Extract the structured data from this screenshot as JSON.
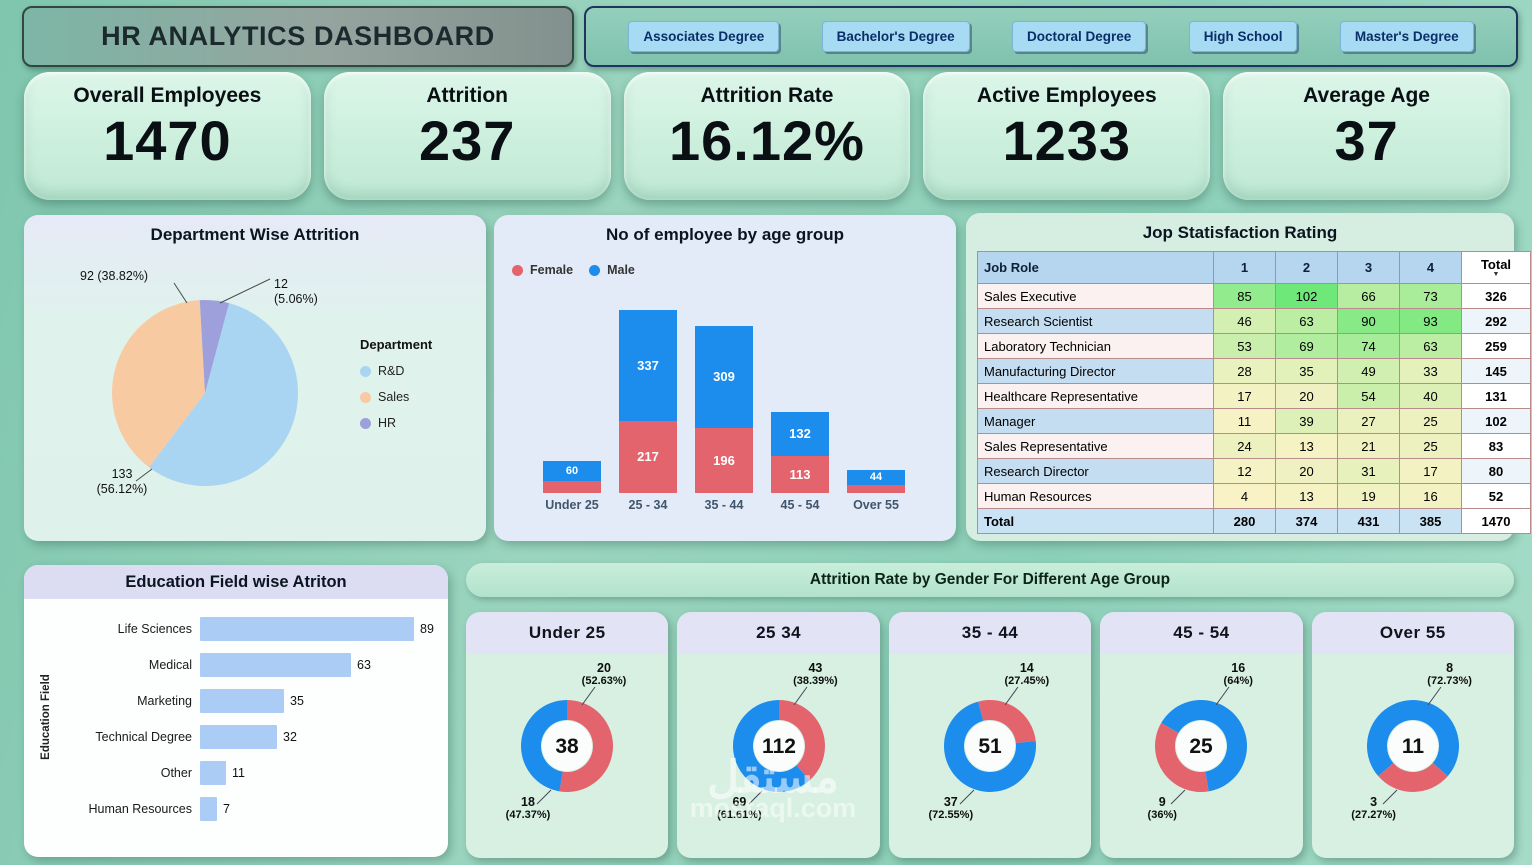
{
  "header": {
    "title": "HR ANALYTICS DASHBOARD"
  },
  "filters": {
    "buttons": [
      {
        "label": "Associates Degree"
      },
      {
        "label": "Bachelor's Degree"
      },
      {
        "label": "Doctoral Degree"
      },
      {
        "label": "High School"
      },
      {
        "label": "Master's Degree"
      }
    ]
  },
  "kpis": [
    {
      "label": "Overall Employees",
      "value": "1470"
    },
    {
      "label": "Attrition",
      "value": "237"
    },
    {
      "label": "Attrition Rate",
      "value": "16.12%"
    },
    {
      "label": "Active Employees",
      "value": "1233"
    },
    {
      "label": "Average Age",
      "value": "37"
    }
  ],
  "chart_data": [
    {
      "id": "department-wise-attrition",
      "type": "pie",
      "title": "Department Wise Attrition",
      "legend_title": "Department",
      "start_deg": 15,
      "slices": [
        {
          "label": "R&D",
          "value": 133,
          "pct": "56.12%",
          "color": "#a9d5f2"
        },
        {
          "label": "Sales",
          "value": 92,
          "pct": "38.82%",
          "color": "#f8caa2"
        },
        {
          "label": "HR",
          "value": 12,
          "pct": "5.06%",
          "color": "#9da0da"
        }
      ]
    },
    {
      "id": "employees-by-age-group",
      "type": "bar",
      "stacked": true,
      "title": "No of employee by age group",
      "categories": [
        "Under 25",
        "25 - 34",
        "35 - 44",
        "45 - 54",
        "Over 55"
      ],
      "series": [
        {
          "name": "Female",
          "color": "#e4646e",
          "values": [
            37,
            217,
            196,
            113,
            25
          ],
          "labels": [
            "",
            "217",
            "196",
            "113",
            ""
          ]
        },
        {
          "name": "Male",
          "color": "#1c8ced",
          "values": [
            60,
            337,
            309,
            132,
            44
          ],
          "labels": [
            "60",
            "337",
            "309",
            "132",
            "44"
          ]
        }
      ],
      "ylim": [
        0,
        600
      ],
      "legend_position": "top-left",
      "grid": false
    },
    {
      "id": "job-satisfaction-rating",
      "type": "table",
      "title": "Jop Statisfaction Rating",
      "columns": [
        "Job Role",
        "1",
        "2",
        "3",
        "4",
        "Total"
      ],
      "rows": [
        {
          "role": "Sales Executive",
          "values": [
            85,
            102,
            66,
            73
          ],
          "total": 326
        },
        {
          "role": "Research Scientist",
          "values": [
            46,
            63,
            90,
            93
          ],
          "total": 292
        },
        {
          "role": "Laboratory Technician",
          "values": [
            53,
            69,
            74,
            63
          ],
          "total": 259
        },
        {
          "role": "Manufacturing Director",
          "values": [
            28,
            35,
            49,
            33
          ],
          "total": 145
        },
        {
          "role": "Healthcare Representative",
          "values": [
            17,
            20,
            54,
            40
          ],
          "total": 131
        },
        {
          "role": "Manager",
          "values": [
            11,
            39,
            27,
            25
          ],
          "total": 102
        },
        {
          "role": "Sales Representative",
          "values": [
            24,
            13,
            21,
            25
          ],
          "total": 83
        },
        {
          "role": "Research Director",
          "values": [
            12,
            20,
            31,
            17
          ],
          "total": 80
        },
        {
          "role": "Human Resources",
          "values": [
            4,
            13,
            19,
            16
          ],
          "total": 52
        }
      ],
      "total_row": {
        "role": "Total",
        "values": [
          280,
          374,
          431,
          385
        ],
        "total": 1470
      }
    },
    {
      "id": "education-field-attrition",
      "type": "bar",
      "orientation": "horizontal",
      "title": "Education Field wise Atriton",
      "ylabel": "Education Field",
      "categories": [
        "Life Sciences",
        "Medical",
        "Marketing",
        "Technical Degree",
        "Other",
        "Human Resources"
      ],
      "values": [
        89,
        63,
        35,
        32,
        11,
        7
      ],
      "bar_color": "#abccf5",
      "grid": false
    },
    {
      "id": "attrition-by-gender-age",
      "type": "pie",
      "subtype": "donut-multiples",
      "title": "Attrition Rate by Gender For Different Age Group",
      "donuts": [
        {
          "label": "Under 25",
          "center": "38",
          "start_deg": 0,
          "segments": [
            {
              "value": 20,
              "pct": "52.63%",
              "color": "#e4646e"
            },
            {
              "value": 18,
              "pct": "47.37%",
              "color": "#1c8ced"
            }
          ]
        },
        {
          "label": "25 34",
          "center": "112",
          "start_deg": 0,
          "segments": [
            {
              "value": 43,
              "pct": "38.39%",
              "color": "#e4646e"
            },
            {
              "value": 69,
              "pct": "61.61%",
              "color": "#1c8ced"
            }
          ]
        },
        {
          "label": "35 - 44",
          "center": "51",
          "start_deg": 345,
          "segments": [
            {
              "value": 14,
              "pct": "27.45%",
              "color": "#e4646e"
            },
            {
              "value": 37,
              "pct": "72.55%",
              "color": "#1c8ced"
            }
          ]
        },
        {
          "label": "45 - 54",
          "center": "25",
          "start_deg": 300,
          "segments": [
            {
              "value": 16,
              "pct": "64%",
              "color": "#1c8ced"
            },
            {
              "value": 9,
              "pct": "36%",
              "color": "#e4646e"
            }
          ]
        },
        {
          "label": "Over 55",
          "center": "11",
          "start_deg": 229,
          "segments": [
            {
              "value": 8,
              "pct": "72.73%",
              "color": "#1c8ced"
            },
            {
              "value": 3,
              "pct": "27.27%",
              "color": "#e4646e"
            }
          ]
        }
      ]
    }
  ],
  "watermark": {
    "line1": "مستقل",
    "line2": "mostaql.com"
  }
}
